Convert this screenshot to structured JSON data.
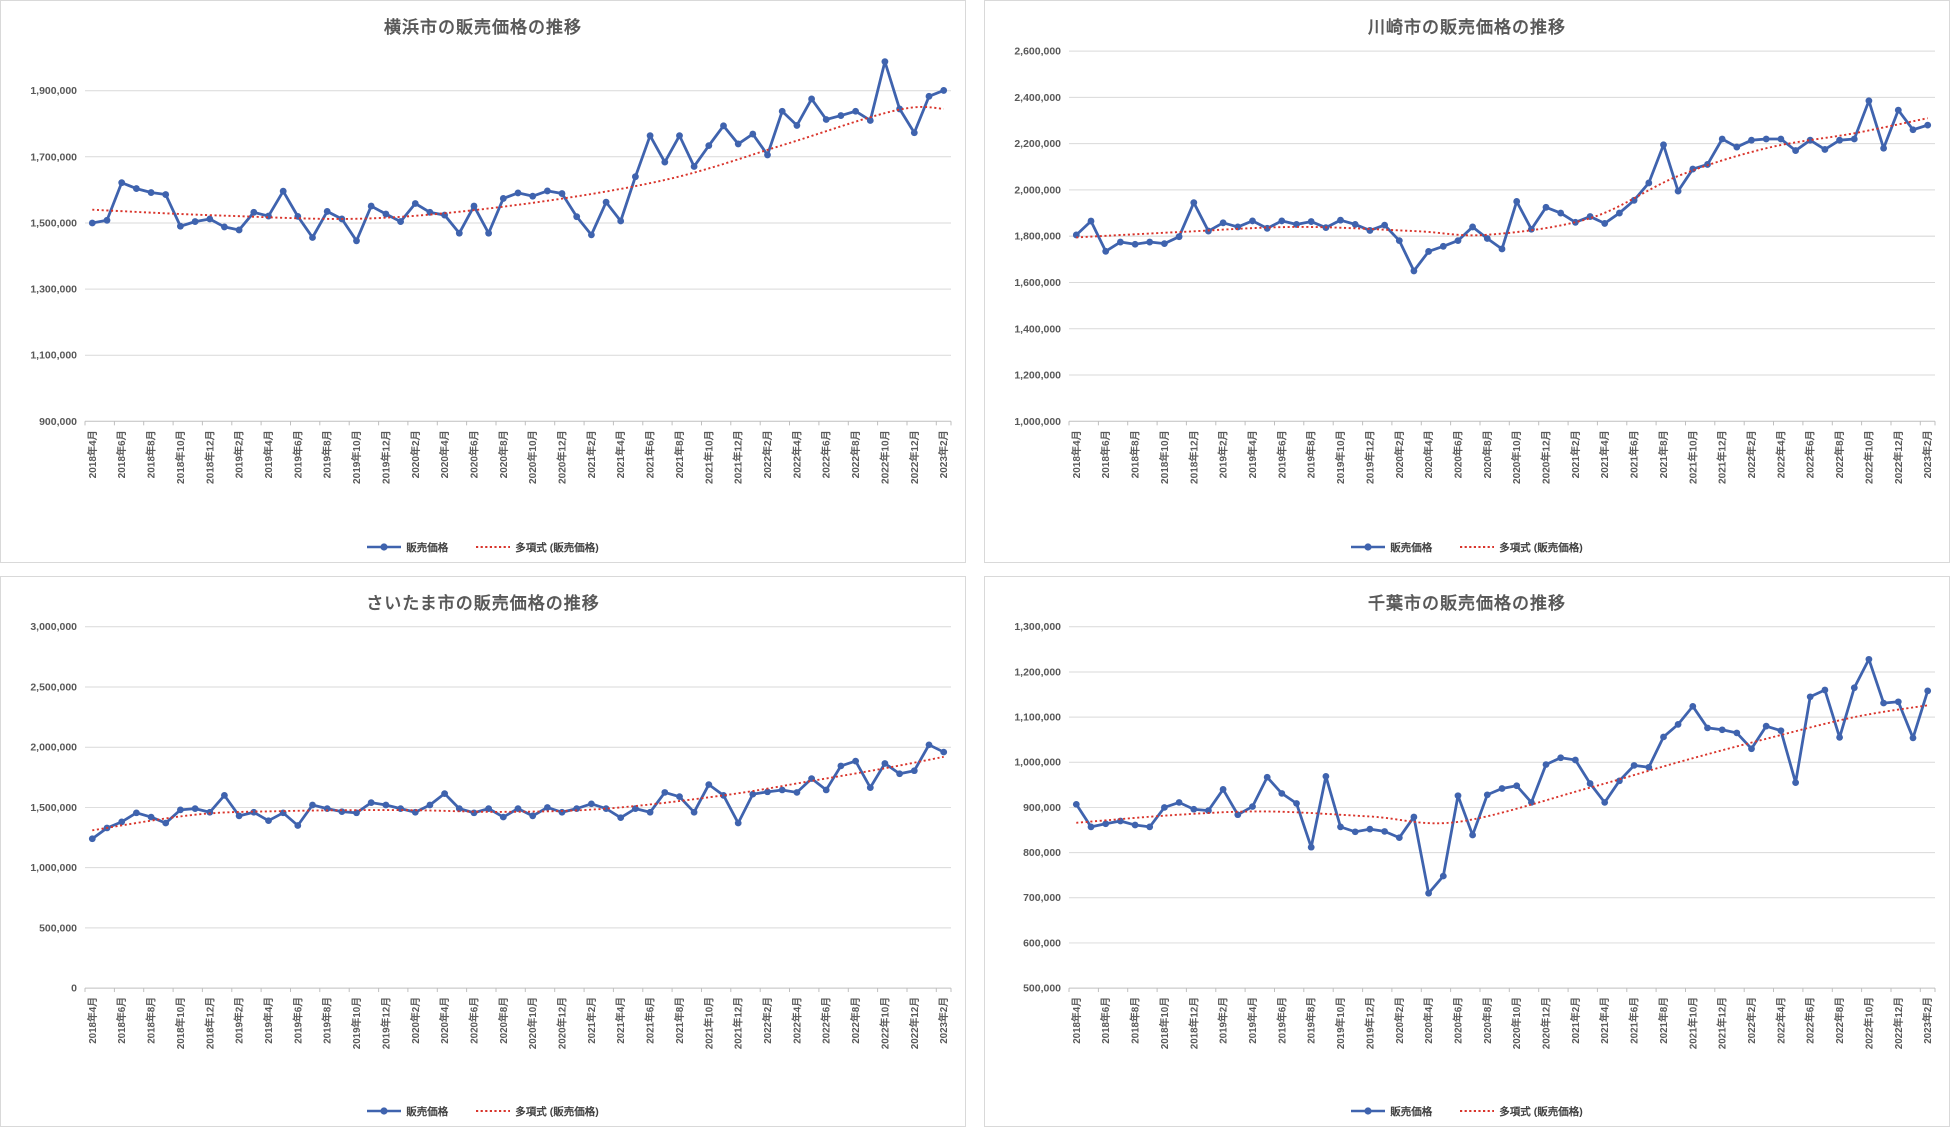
{
  "categories": [
    "2018年4月",
    "2018年5月",
    "2018年6月",
    "2018年7月",
    "2018年8月",
    "2018年9月",
    "2018年10月",
    "2018年11月",
    "2018年12月",
    "2019年1月",
    "2019年2月",
    "2019年3月",
    "2019年4月",
    "2019年5月",
    "2019年6月",
    "2019年7月",
    "2019年8月",
    "2019年9月",
    "2019年10月",
    "2019年11月",
    "2019年12月",
    "2020年1月",
    "2020年2月",
    "2020年3月",
    "2020年4月",
    "2020年5月",
    "2020年6月",
    "2020年7月",
    "2020年8月",
    "2020年9月",
    "2020年10月",
    "2020年11月",
    "2020年12月",
    "2021年1月",
    "2021年2月",
    "2021年3月",
    "2021年4月",
    "2021年5月",
    "2021年6月",
    "2021年7月",
    "2021年8月",
    "2021年9月",
    "2021年10月",
    "2021年11月",
    "2021年12月",
    "2022年1月",
    "2022年2月",
    "2022年3月",
    "2022年4月",
    "2022年5月",
    "2022年6月",
    "2022年7月",
    "2022年8月",
    "2022年9月",
    "2022年10月",
    "2022年11月",
    "2022年12月",
    "2023年1月",
    "2023年2月"
  ],
  "chart_data": [
    {
      "type": "line",
      "title": "横浜市の販売価格の推移",
      "legend": [
        "販売価格",
        "多項式 (販売価格)"
      ],
      "colors": {
        "series": "#3f63ae",
        "trend": "#d9342b"
      },
      "y_axis": {
        "min": 900000,
        "max": 2020000,
        "tick_values": [
          900000,
          1100000,
          1300000,
          1500000,
          1700000,
          1900000
        ],
        "tick_labels": [
          "900,000",
          "1,100,000",
          "1,300,000",
          "1,500,000",
          "1,700,000",
          "1,900,000"
        ]
      },
      "values": [
        1500000,
        1508000,
        1622000,
        1604000,
        1592000,
        1586000,
        1490000,
        1504000,
        1512000,
        1488000,
        1479000,
        1532000,
        1521000,
        1596000,
        1520000,
        1456000,
        1535000,
        1512000,
        1446000,
        1551000,
        1527000,
        1504000,
        1559000,
        1532000,
        1524000,
        1469000,
        1551000,
        1469000,
        1574000,
        1591000,
        1581000,
        1597000,
        1589000,
        1519000,
        1464000,
        1563000,
        1506000,
        1640000,
        1764000,
        1684000,
        1764000,
        1671000,
        1734000,
        1794000,
        1739000,
        1769000,
        1706000,
        1838000,
        1795000,
        1875000,
        1813000,
        1825000,
        1838000,
        1810000,
        1988000,
        1845000,
        1773000,
        1883000,
        1901000
      ],
      "trend_points": [
        [
          1,
          1540000
        ],
        [
          10,
          1522000
        ],
        [
          20,
          1514000
        ],
        [
          30,
          1555000
        ],
        [
          40,
          1630000
        ],
        [
          48,
          1735000
        ],
        [
          54,
          1820000
        ],
        [
          57,
          1850000
        ],
        [
          59,
          1845000
        ]
      ]
    },
    {
      "type": "line",
      "title": "川崎市の販売価格の推移",
      "legend": [
        "販売価格",
        "多項式 (販売価格)"
      ],
      "colors": {
        "series": "#3f63ae",
        "trend": "#d9342b"
      },
      "y_axis": {
        "min": 1000000,
        "max": 2600000,
        "tick_values": [
          1000000,
          1200000,
          1400000,
          1600000,
          1800000,
          2000000,
          2200000,
          2400000,
          2600000
        ],
        "tick_labels": [
          "1,000,000",
          "1,200,000",
          "1,400,000",
          "1,600,000",
          "1,800,000",
          "2,000,000",
          "2,200,000",
          "2,400,000",
          "2,600,000"
        ]
      },
      "values": [
        1805000,
        1865000,
        1735000,
        1775000,
        1765000,
        1775000,
        1768000,
        1798000,
        1945000,
        1822000,
        1858000,
        1840000,
        1866000,
        1834000,
        1866000,
        1851000,
        1863000,
        1837000,
        1869000,
        1851000,
        1825000,
        1848000,
        1781000,
        1650000,
        1734000,
        1756000,
        1781000,
        1840000,
        1790000,
        1745000,
        1950000,
        1830000,
        1925000,
        1900000,
        1860000,
        1885000,
        1855000,
        1900000,
        1955000,
        2030000,
        2195000,
        1995000,
        2090000,
        2110000,
        2220000,
        2185000,
        2215000,
        2220000,
        2220000,
        2170000,
        2215000,
        2175000,
        2215000,
        2220000,
        2385000,
        2180000,
        2345000,
        2260000,
        2280000
      ],
      "trend_points": [
        [
          1,
          1795000
        ],
        [
          8,
          1818000
        ],
        [
          16,
          1840000
        ],
        [
          24,
          1822000
        ],
        [
          29,
          1806000
        ],
        [
          36,
          1878000
        ],
        [
          42,
          2060000
        ],
        [
          48,
          2180000
        ],
        [
          54,
          2245000
        ],
        [
          59,
          2310000
        ]
      ]
    },
    {
      "type": "line",
      "title": "さいたま市の販売価格の推移",
      "legend": [
        "販売価格",
        "多項式 (販売価格)"
      ],
      "colors": {
        "series": "#3f63ae",
        "trend": "#d9342b"
      },
      "y_axis": {
        "min": 0,
        "max": 3000000,
        "tick_values": [
          0,
          500000,
          1000000,
          1500000,
          2000000,
          2500000,
          3000000
        ],
        "tick_labels": [
          "0",
          "500,000",
          "1,000,000",
          "1,500,000",
          "2,000,000",
          "2,500,000",
          "3,000,000"
        ]
      },
      "values": [
        1240000,
        1330000,
        1380000,
        1455000,
        1420000,
        1370000,
        1480000,
        1490000,
        1460000,
        1600000,
        1430000,
        1460000,
        1390000,
        1455000,
        1350000,
        1520000,
        1490000,
        1465000,
        1455000,
        1540000,
        1520000,
        1490000,
        1460000,
        1520000,
        1615000,
        1490000,
        1455000,
        1490000,
        1420000,
        1490000,
        1430000,
        1500000,
        1460000,
        1490000,
        1530000,
        1490000,
        1415000,
        1490000,
        1460000,
        1625000,
        1590000,
        1460000,
        1690000,
        1600000,
        1370000,
        1610000,
        1630000,
        1645000,
        1625000,
        1740000,
        1645000,
        1845000,
        1885000,
        1665000,
        1865000,
        1780000,
        1805000,
        2020000,
        1960000
      ],
      "trend_points": [
        [
          1,
          1310000
        ],
        [
          8,
          1440000
        ],
        [
          14,
          1470000
        ],
        [
          22,
          1478000
        ],
        [
          29,
          1463000
        ],
        [
          36,
          1490000
        ],
        [
          44,
          1600000
        ],
        [
          50,
          1720000
        ],
        [
          55,
          1825000
        ],
        [
          59,
          1920000
        ]
      ]
    },
    {
      "type": "line",
      "title": "千葉市の販売価格の推移",
      "legend": [
        "販売価格",
        "多項式 (販売価格)"
      ],
      "colors": {
        "series": "#3f63ae",
        "trend": "#d9342b"
      },
      "y_axis": {
        "min": 500000,
        "max": 1300000,
        "tick_values": [
          500000,
          600000,
          700000,
          800000,
          900000,
          1000000,
          1100000,
          1200000,
          1300000
        ],
        "tick_labels": [
          "500,000",
          "600,000",
          "700,000",
          "800,000",
          "900,000",
          "1,000,000",
          "1,100,000",
          "1,200,000",
          "1,300,000"
        ]
      },
      "values": [
        907000,
        857000,
        864000,
        870000,
        861000,
        857000,
        900000,
        911000,
        896000,
        893000,
        940000,
        884000,
        902000,
        967000,
        931000,
        909000,
        812000,
        969000,
        857000,
        846000,
        852000,
        847000,
        833000,
        879000,
        710000,
        748000,
        926000,
        839000,
        928000,
        942000,
        948000,
        911000,
        995000,
        1010000,
        1005000,
        953000,
        911000,
        959000,
        993000,
        989000,
        1056000,
        1084000,
        1124000,
        1076000,
        1072000,
        1065000,
        1030000,
        1080000,
        1070000,
        955000,
        1145000,
        1160000,
        1055000,
        1165000,
        1228000,
        1131000,
        1134000,
        1054000,
        1158000
      ],
      "trend_points": [
        [
          1,
          866000
        ],
        [
          8,
          884000
        ],
        [
          14,
          891000
        ],
        [
          21,
          880000
        ],
        [
          27,
          868000
        ],
        [
          36,
          944000
        ],
        [
          42,
          1000000
        ],
        [
          48,
          1052000
        ],
        [
          54,
          1100000
        ],
        [
          59,
          1126000
        ]
      ]
    }
  ]
}
